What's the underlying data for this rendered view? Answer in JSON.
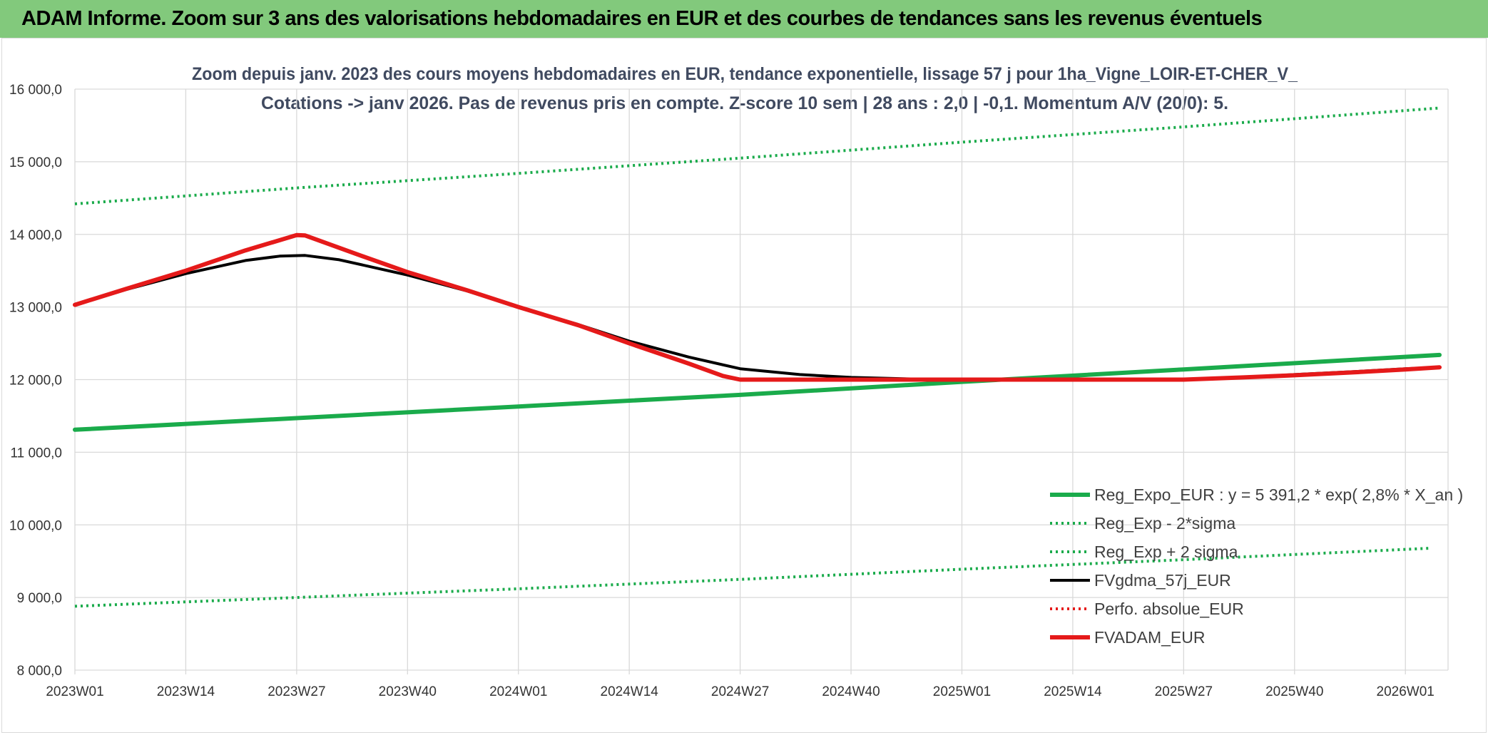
{
  "banner": {
    "title": "ADAM Informe. Zoom sur 3 ans des valorisations hebdomadaires en EUR et des courbes de tendances sans les revenus éventuels"
  },
  "colors": {
    "banner_bg": "#82c97c",
    "trend_green": "#1aab4b",
    "fv_black": "#000000",
    "fvadam_red": "#e51a1a",
    "title_text": "#404a60",
    "grid": "#d9d9d9"
  },
  "chart_data": {
    "type": "line",
    "title_line1": "Zoom depuis janv. 2023 des cours moyens hebdomadaires en EUR, tendance exponentielle, lissage 57 j pour 1ha_Vigne_LOIR-ET-CHER_V_",
    "title_line2": "Cotations -> janv 2026. Pas de revenus pris en compte. Z-score 10 sem | 28 ans : 2,0 | -0,1. Momentum A/V (20/0): 5.",
    "x_unit": "week index since 2023W01 (labels printed as year+week)",
    "x_range": [
      0,
      161
    ],
    "x_ticks": [
      {
        "x": 0,
        "label": "2023W01"
      },
      {
        "x": 13,
        "label": "2023W14"
      },
      {
        "x": 26,
        "label": "2023W27"
      },
      {
        "x": 39,
        "label": "2023W40"
      },
      {
        "x": 52,
        "label": "2024W01"
      },
      {
        "x": 65,
        "label": "2024W14"
      },
      {
        "x": 78,
        "label": "2024W27"
      },
      {
        "x": 91,
        "label": "2024W40"
      },
      {
        "x": 104,
        "label": "2025W01"
      },
      {
        "x": 117,
        "label": "2025W14"
      },
      {
        "x": 130,
        "label": "2025W27"
      },
      {
        "x": 143,
        "label": "2025W40"
      },
      {
        "x": 156,
        "label": "2026W01"
      }
    ],
    "ylim": [
      8000,
      16000
    ],
    "y_ticks": [
      {
        "v": 8000,
        "label": "8 000,0"
      },
      {
        "v": 9000,
        "label": "9 000,0"
      },
      {
        "v": 10000,
        "label": "10 000,0"
      },
      {
        "v": 11000,
        "label": "11 000,0"
      },
      {
        "v": 12000,
        "label": "12 000,0"
      },
      {
        "v": 13000,
        "label": "13 000,0"
      },
      {
        "v": 14000,
        "label": "14 000,0"
      },
      {
        "v": 15000,
        "label": "15 000,0"
      },
      {
        "v": 16000,
        "label": "16 000,0"
      }
    ],
    "grid": true,
    "legend_position": "bottom-right",
    "series": [
      {
        "name": "Reg_Expo_EUR : y = 5 391,2 * exp( 2,8% *  X_an )",
        "style": "solid-thick",
        "color": "#1aab4b",
        "points": [
          [
            0,
            11310
          ],
          [
            26,
            11470
          ],
          [
            52,
            11630
          ],
          [
            78,
            11790
          ],
          [
            104,
            11970
          ],
          [
            130,
            12140
          ],
          [
            160,
            12340
          ]
        ]
      },
      {
        "name": "Reg_Exp - 2*sigma",
        "style": "dotted",
        "color": "#1aab4b",
        "points": [
          [
            0,
            8880
          ],
          [
            26,
            9000
          ],
          [
            52,
            9120
          ],
          [
            78,
            9250
          ],
          [
            104,
            9390
          ],
          [
            130,
            9520
          ],
          [
            159,
            9680
          ]
        ]
      },
      {
        "name": "Reg_Exp + 2 sigma",
        "style": "dotted",
        "color": "#1aab4b",
        "points": [
          [
            0,
            14420
          ],
          [
            26,
            14640
          ],
          [
            52,
            14840
          ],
          [
            78,
            15050
          ],
          [
            104,
            15270
          ],
          [
            130,
            15480
          ],
          [
            160,
            15740
          ]
        ]
      },
      {
        "name": "FVgdma_57j_EUR",
        "style": "solid",
        "color": "#000000",
        "points": [
          [
            0,
            13030
          ],
          [
            6,
            13240
          ],
          [
            13,
            13460
          ],
          [
            20,
            13640
          ],
          [
            24,
            13700
          ],
          [
            27,
            13710
          ],
          [
            31,
            13650
          ],
          [
            39,
            13440
          ],
          [
            46,
            13220
          ],
          [
            52,
            13000
          ],
          [
            59,
            12760
          ],
          [
            65,
            12530
          ],
          [
            72,
            12310
          ],
          [
            78,
            12150
          ],
          [
            85,
            12070
          ],
          [
            91,
            12030
          ],
          [
            98,
            12010
          ],
          [
            104,
            12000
          ],
          [
            117,
            12000
          ],
          [
            130,
            12000
          ],
          [
            137,
            12030
          ],
          [
            143,
            12070
          ],
          [
            150,
            12110
          ],
          [
            156,
            12150
          ],
          [
            160,
            12170
          ]
        ]
      },
      {
        "name": "Perfo. absolue_EUR",
        "style": "dotted",
        "color": "#e51a1a",
        "points": []
      },
      {
        "name": "FVADAM_EUR",
        "style": "solid-thick",
        "color": "#e51a1a",
        "points": [
          [
            0,
            13030
          ],
          [
            6,
            13250
          ],
          [
            13,
            13500
          ],
          [
            20,
            13780
          ],
          [
            26,
            13990
          ],
          [
            27,
            13985
          ],
          [
            33,
            13730
          ],
          [
            39,
            13480
          ],
          [
            46,
            13230
          ],
          [
            52,
            13000
          ],
          [
            59,
            12750
          ],
          [
            65,
            12500
          ],
          [
            72,
            12220
          ],
          [
            76,
            12050
          ],
          [
            78,
            12000
          ],
          [
            91,
            12000
          ],
          [
            104,
            12000
          ],
          [
            117,
            12000
          ],
          [
            130,
            12000
          ],
          [
            137,
            12030
          ],
          [
            143,
            12060
          ],
          [
            150,
            12100
          ],
          [
            156,
            12140
          ],
          [
            160,
            12170
          ]
        ]
      }
    ]
  }
}
